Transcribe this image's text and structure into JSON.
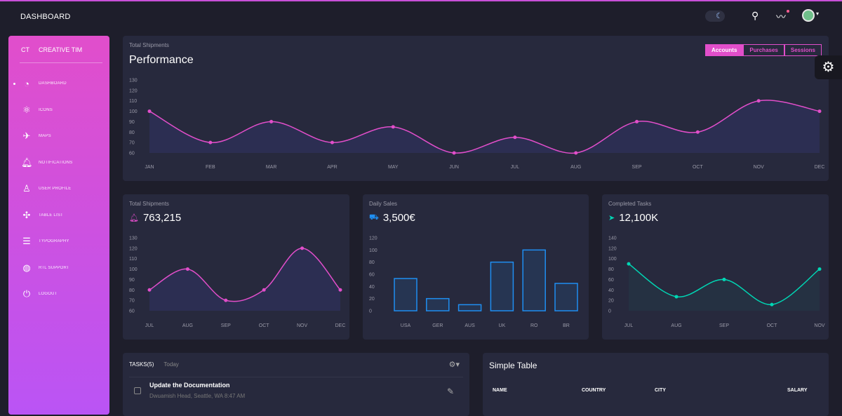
{
  "navbar": {
    "brand": "DASHBOARD",
    "icons": [
      "theme-toggle-icon",
      "search-icon",
      "activity-icon",
      "avatar"
    ]
  },
  "sidebar": {
    "logo_short": "CT",
    "logo_text": "CREATIVE TIM",
    "items": [
      {
        "label": "DASHBOARD",
        "icon": "◔",
        "active": true
      },
      {
        "label": "ICONS",
        "icon": "⚛"
      },
      {
        "label": "MAPS",
        "icon": "✈"
      },
      {
        "label": "NOTIFICATIONS",
        "icon": "🔔︎"
      },
      {
        "label": "USER PROFILE",
        "icon": "♙"
      },
      {
        "label": "TABLE LIST",
        "icon": "✣"
      },
      {
        "label": "TYPOGRAPHY",
        "icon": "☰"
      },
      {
        "label": "RTL SUPPORT",
        "icon": "◍"
      },
      {
        "label": "LOGOUT",
        "icon": "⏻"
      }
    ]
  },
  "performance": {
    "category": "Total Shipments",
    "title": "Performance",
    "buttons": [
      "Accounts",
      "Purchases",
      "Sessions"
    ],
    "active": "Accounts"
  },
  "cards": {
    "shipments": {
      "category": "Total Shipments",
      "value": "763,215"
    },
    "sales": {
      "category": "Daily Sales",
      "value": "3,500€"
    },
    "tasks": {
      "category": "Completed Tasks",
      "value": "12,100K"
    }
  },
  "tasks": {
    "header": "TASKS(5)",
    "filter": "Today",
    "items": [
      {
        "title": "Update the Documentation",
        "subtitle": "Dwuamish Head, Seattle, WA 8:47 AM"
      }
    ]
  },
  "table": {
    "title": "Simple Table",
    "headers": [
      "NAME",
      "COUNTRY",
      "CITY",
      "SALARY"
    ]
  },
  "colors": {
    "accent": "#e14eca",
    "blue": "#1f8ef1",
    "teal": "#00f2c3",
    "card": "#27293d",
    "background": "#1e1e2b"
  },
  "chart_data": [
    {
      "type": "line",
      "id": "performance",
      "categories": [
        "JAN",
        "FEB",
        "MAR",
        "APR",
        "MAY",
        "JUN",
        "JUL",
        "AUG",
        "SEP",
        "OCT",
        "NOV",
        "DEC"
      ],
      "values": [
        100,
        70,
        90,
        70,
        85,
        60,
        75,
        60,
        90,
        80,
        110,
        100
      ],
      "ylim": [
        60,
        130
      ],
      "yticks": [
        60,
        70,
        80,
        90,
        100,
        110,
        120,
        130
      ],
      "color": "#e14eca"
    },
    {
      "type": "line",
      "id": "shipments",
      "categories": [
        "JUL",
        "AUG",
        "SEP",
        "OCT",
        "NOV",
        "DEC"
      ],
      "values": [
        80,
        100,
        70,
        80,
        120,
        80
      ],
      "ylim": [
        60,
        130
      ],
      "yticks": [
        60,
        70,
        80,
        90,
        100,
        110,
        120,
        130
      ],
      "color": "#e14eca"
    },
    {
      "type": "bar",
      "id": "sales",
      "categories": [
        "USA",
        "GER",
        "AUS",
        "UK",
        "RO",
        "BR"
      ],
      "values": [
        53,
        20,
        10,
        80,
        100,
        45
      ],
      "ylim": [
        0,
        120
      ],
      "yticks": [
        0,
        20,
        40,
        60,
        80,
        100,
        120
      ],
      "color": "#1f8ef1"
    },
    {
      "type": "line",
      "id": "tasks",
      "categories": [
        "JUL",
        "AUG",
        "SEP",
        "OCT",
        "NOV"
      ],
      "values": [
        90,
        27,
        60,
        12,
        80
      ],
      "ylim": [
        0,
        140
      ],
      "yticks": [
        0,
        20,
        40,
        60,
        80,
        100,
        120,
        140
      ],
      "color": "#00d6b4"
    }
  ]
}
